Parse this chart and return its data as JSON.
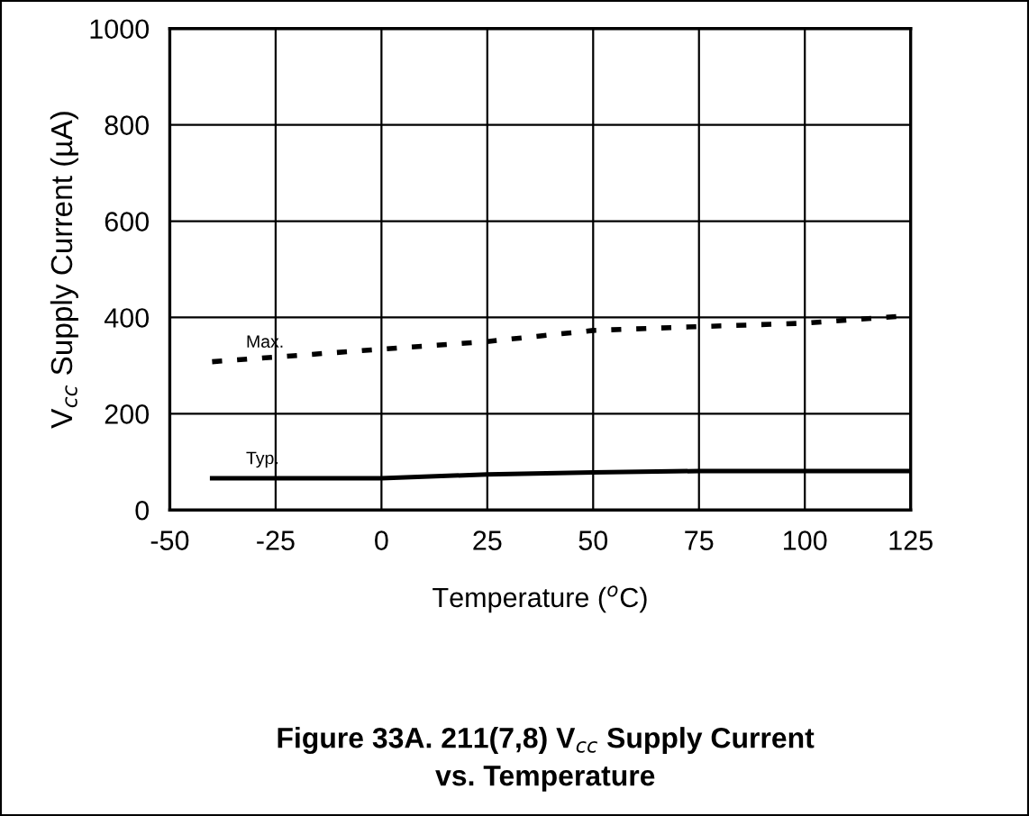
{
  "chart_data": {
    "type": "line",
    "title": "Figure 33A. 211(7,8) V$_{cc}$ Supply Current\nvs. Temperature",
    "xlabel": "Temperature ($^{o}$C)",
    "ylabel": "V$_{cc}$ Supply Current (µA)",
    "x": [
      -40,
      0,
      25,
      50,
      75,
      100,
      125
    ],
    "series": [
      {
        "color": "#000000",
        "line_style": "dotted",
        "values": [
          308,
          334,
          350,
          373,
          381,
          388,
          404
        ]
      },
      {
        "color": "#000000",
        "line_style": "solid",
        "values": [
          66,
          66,
          74,
          78,
          81,
          81,
          81
        ]
      }
    ],
    "annotations": [
      {
        "text": "Max.",
        "x": -32,
        "y": 330
      },
      {
        "text": "Typ.",
        "x": -32,
        "y": 88
      }
    ],
    "xlim": [
      -50,
      125
    ],
    "xticks": [
      -50,
      -25,
      0,
      25,
      50,
      75,
      100,
      125
    ],
    "ylim": [
      0,
      1000
    ],
    "yticks": [
      0,
      200,
      400,
      600,
      800,
      1000
    ],
    "grid": true,
    "legend": false,
    "marker": "none"
  }
}
